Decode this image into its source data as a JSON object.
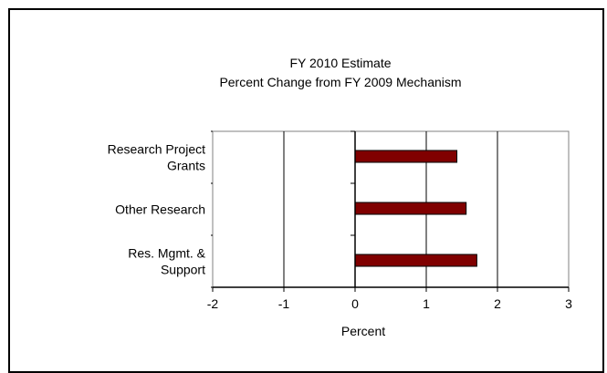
{
  "chart_data": {
    "type": "bar",
    "orientation": "horizontal",
    "title": "FY 2010 Estimate",
    "subtitle": "Percent Change from FY 2009 Mechanism",
    "categories": [
      [
        "Research Project",
        "Grants"
      ],
      [
        "Other Research"
      ],
      [
        "Res. Mgmt. &",
        "Support"
      ]
    ],
    "values": [
      1.43,
      1.56,
      1.71
    ],
    "xlabel": "Percent",
    "xlim": [
      -2,
      3
    ],
    "xticks": [
      "-2",
      "-1",
      "0",
      "1",
      "2",
      "3"
    ],
    "grid": true,
    "bar_color": "#800000"
  }
}
